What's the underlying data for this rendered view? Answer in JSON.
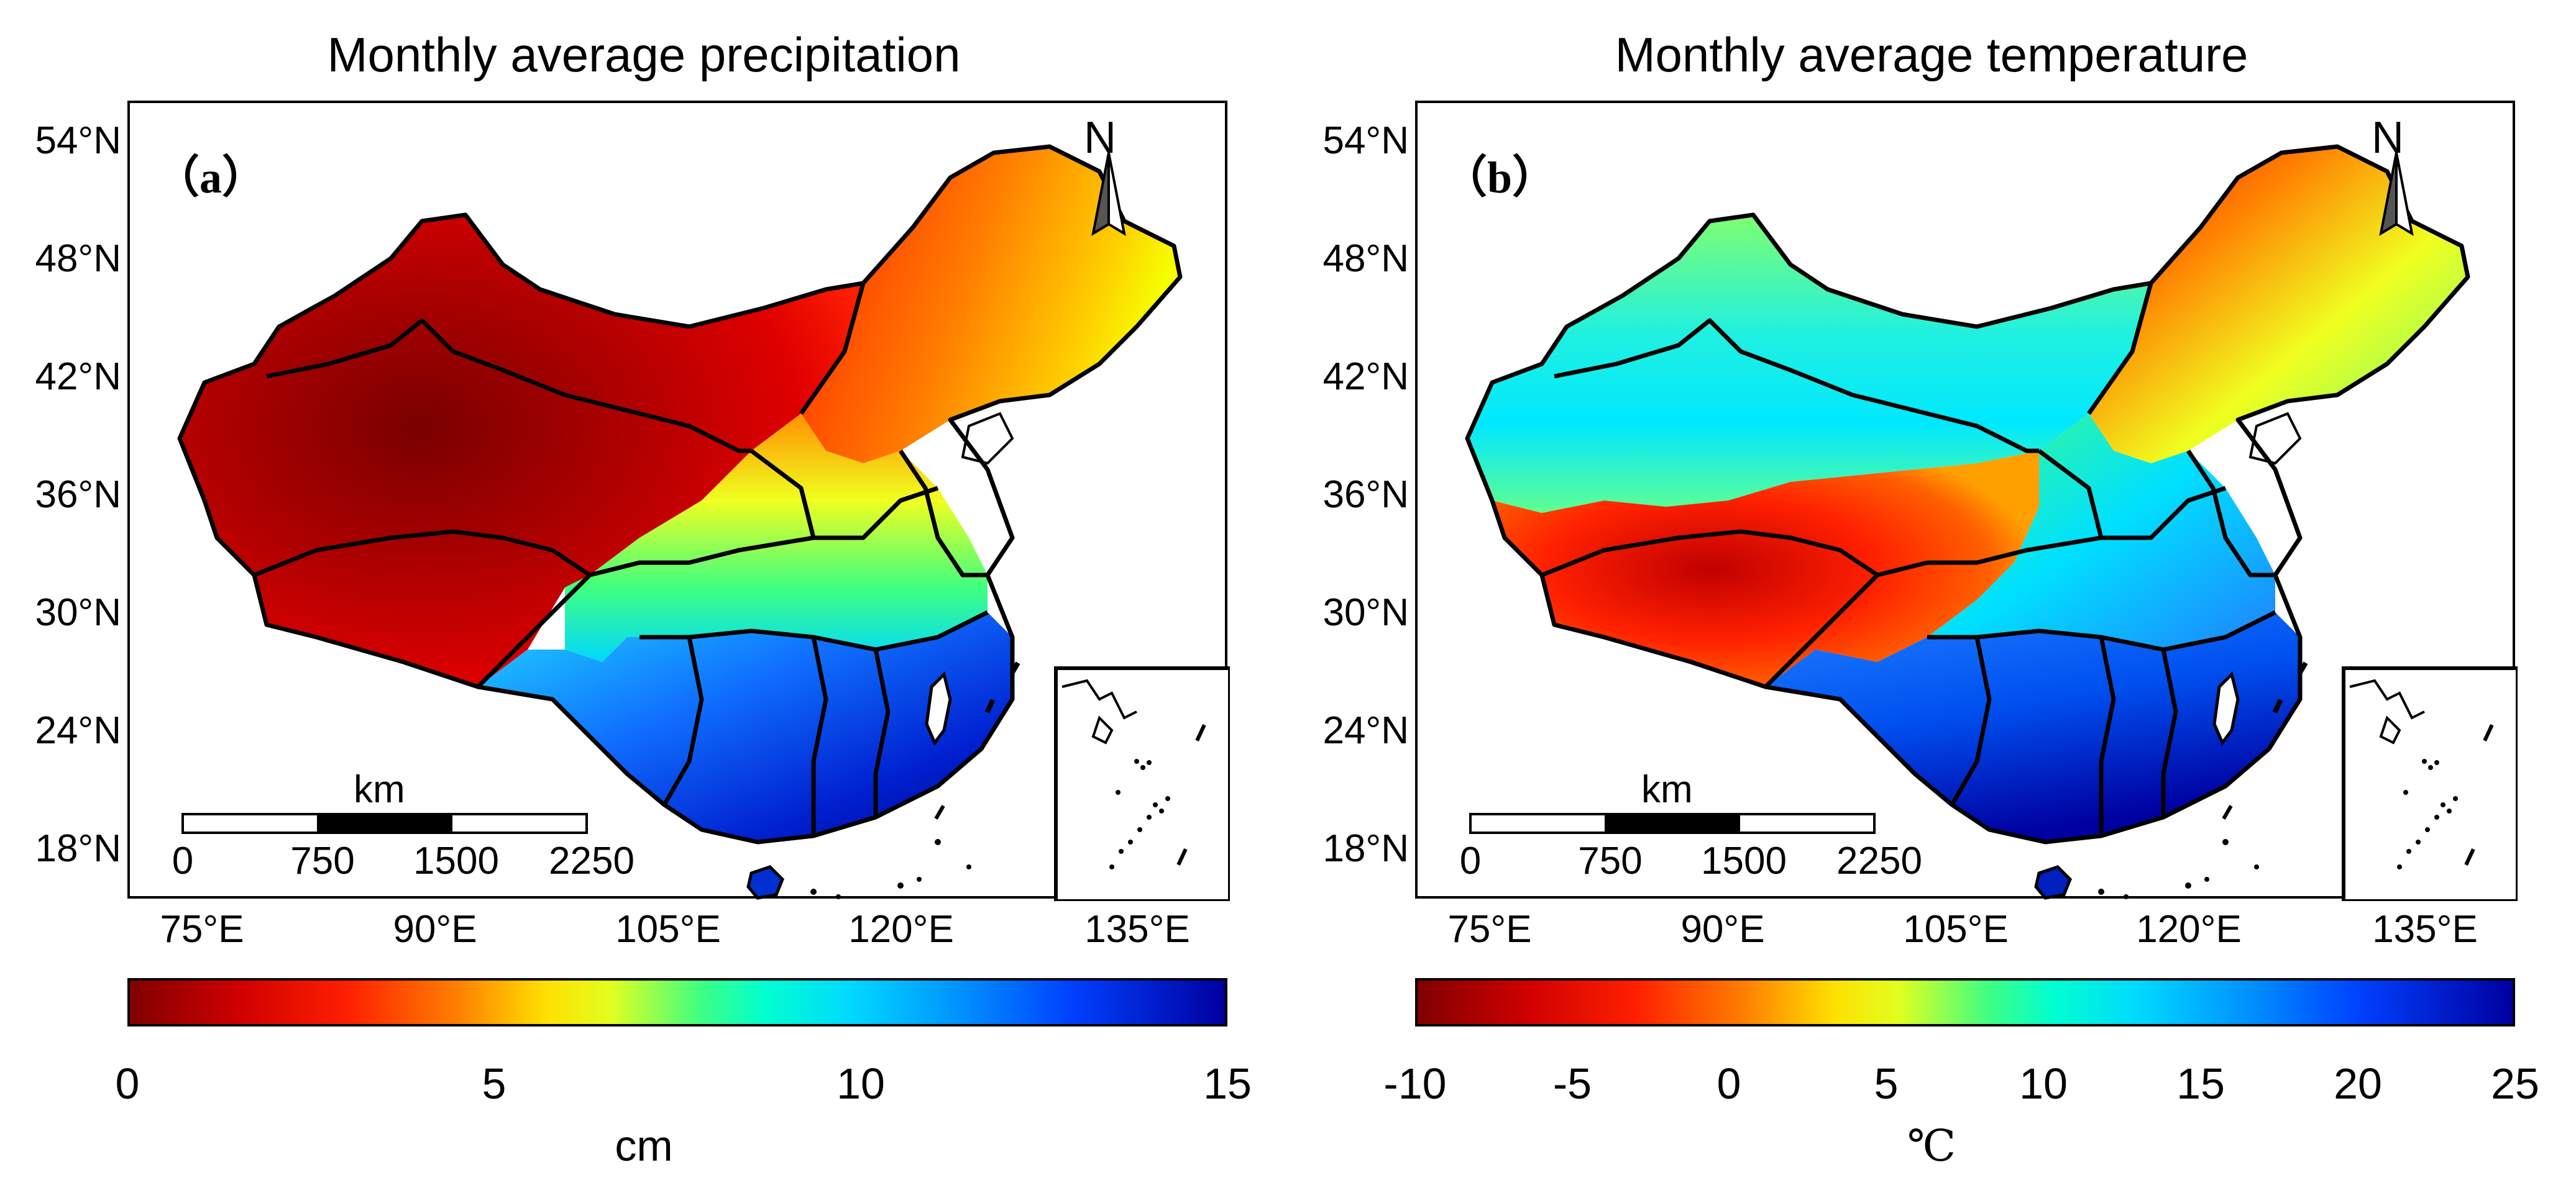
{
  "panels": [
    {
      "id": "a",
      "title": "Monthly average precipitation",
      "letter": "（a）",
      "north": "N",
      "lat_ticks": [
        "54°N",
        "48°N",
        "42°N",
        "36°N",
        "30°N",
        "24°N",
        "18°N"
      ],
      "lon_ticks": [
        "75°E",
        "90°E",
        "105°E",
        "120°E",
        "135°E"
      ],
      "scale": {
        "unit": "km",
        "ticks": [
          "0",
          "750",
          "1500",
          "2250"
        ]
      },
      "colorbar": {
        "ticks": [
          "0",
          "5",
          "10",
          "15"
        ],
        "unit": "cm",
        "range": [
          0,
          15
        ],
        "reversed_jet": true
      }
    },
    {
      "id": "b",
      "title": "Monthly average temperature",
      "letter": "（b）",
      "north": "N",
      "lat_ticks": [
        "54°N",
        "48°N",
        "42°N",
        "36°N",
        "30°N",
        "24°N",
        "18°N"
      ],
      "lon_ticks": [
        "75°E",
        "90°E",
        "105°E",
        "120°E",
        "135°E"
      ],
      "scale": {
        "unit": "km",
        "ticks": [
          "0",
          "750",
          "1500",
          "2250"
        ]
      },
      "colorbar": {
        "ticks": [
          "-10",
          "-5",
          "0",
          "5",
          "10",
          "15",
          "20",
          "25"
        ],
        "unit": "℃",
        "range": [
          -10,
          25
        ],
        "reversed_jet": true
      }
    }
  ],
  "colors": {
    "dark_red": "#8b0000",
    "red": "#ff2000",
    "orange": "#ff9000",
    "yellow": "#f5ff00",
    "green": "#40ff80",
    "cyan": "#00e8ff",
    "blue": "#1060ff",
    "dark_blue": "#000090"
  }
}
